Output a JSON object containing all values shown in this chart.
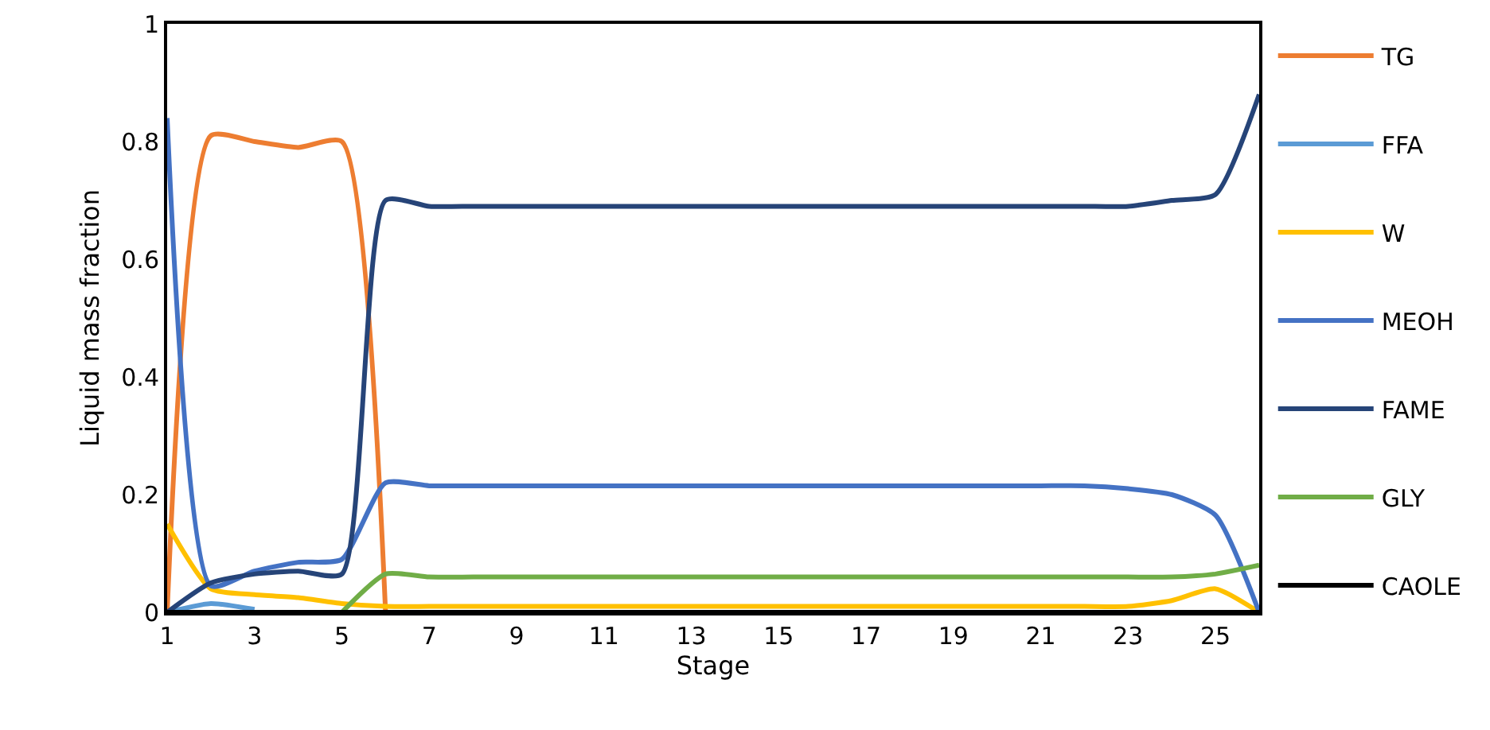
{
  "chart_data": {
    "type": "line",
    "xlabel": "Stage",
    "ylabel": "Liquid mass fraction",
    "x": [
      1,
      2,
      3,
      4,
      5,
      6,
      7,
      8,
      9,
      10,
      11,
      12,
      13,
      14,
      15,
      16,
      17,
      18,
      19,
      20,
      21,
      22,
      23,
      24,
      25,
      26
    ],
    "xlim": [
      1,
      26
    ],
    "xticks": [
      1,
      3,
      5,
      7,
      9,
      11,
      13,
      15,
      17,
      19,
      21,
      23,
      25
    ],
    "ylim": [
      0,
      1
    ],
    "yticks": [
      0,
      0.2,
      0.4,
      0.6,
      0.8,
      1
    ],
    "grid": false,
    "legend": "right",
    "marker": "none",
    "line_style": "solid",
    "series": [
      {
        "name": "TG",
        "color": "#ed7d31",
        "values": [
          0,
          0.81,
          0.8,
          0.79,
          0.8,
          0,
          null,
          null,
          null,
          null,
          null,
          null,
          null,
          null,
          null,
          null,
          null,
          null,
          null,
          null,
          null,
          null,
          null,
          null,
          null,
          null
        ]
      },
      {
        "name": "FFA",
        "color": "#5b9bd5",
        "values": [
          0,
          0.015,
          0.005,
          null,
          null,
          null,
          null,
          null,
          null,
          null,
          null,
          null,
          null,
          null,
          null,
          null,
          null,
          null,
          null,
          null,
          null,
          null,
          null,
          null,
          null,
          null
        ]
      },
      {
        "name": "W",
        "color": "#ffc000",
        "values": [
          0.15,
          0.04,
          0.03,
          0.025,
          0.015,
          0.01,
          0.01,
          0.01,
          0.01,
          0.01,
          0.01,
          0.01,
          0.01,
          0.01,
          0.01,
          0.01,
          0.01,
          0.01,
          0.01,
          0.01,
          0.01,
          0.01,
          0.01,
          0.02,
          0.04,
          0
        ]
      },
      {
        "name": "MEOH",
        "color": "#4472c4",
        "values": [
          0.84,
          0.045,
          0.07,
          0.085,
          0.09,
          0.22,
          0.215,
          0.215,
          0.215,
          0.215,
          0.215,
          0.215,
          0.215,
          0.215,
          0.215,
          0.215,
          0.215,
          0.215,
          0.215,
          0.215,
          0.215,
          0.215,
          0.21,
          0.2,
          0.165,
          0
        ]
      },
      {
        "name": "FAME",
        "color": "#264478",
        "values": [
          0,
          0.05,
          0.065,
          0.07,
          0.065,
          0.7,
          0.69,
          0.69,
          0.69,
          0.69,
          0.69,
          0.69,
          0.69,
          0.69,
          0.69,
          0.69,
          0.69,
          0.69,
          0.69,
          0.69,
          0.69,
          0.69,
          0.69,
          0.7,
          0.71,
          0.88
        ]
      },
      {
        "name": "GLY",
        "color": "#70ad47",
        "values": [
          null,
          null,
          null,
          null,
          0,
          0.065,
          0.06,
          0.06,
          0.06,
          0.06,
          0.06,
          0.06,
          0.06,
          0.06,
          0.06,
          0.06,
          0.06,
          0.06,
          0.06,
          0.06,
          0.06,
          0.06,
          0.06,
          0.06,
          0.065,
          0.08
        ]
      },
      {
        "name": "CAOLE",
        "color": "#000000",
        "values": [
          0,
          0,
          0,
          0,
          0,
          0,
          0,
          0,
          0,
          0,
          0,
          0,
          0,
          0,
          0,
          0,
          0,
          0,
          0,
          0,
          0,
          0,
          0,
          0,
          0,
          0
        ]
      }
    ]
  }
}
